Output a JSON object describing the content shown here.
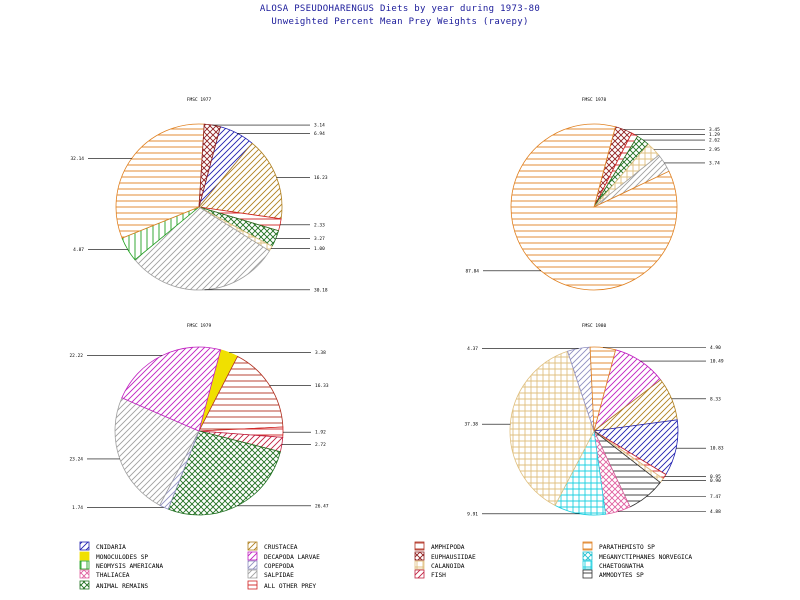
{
  "title": "ALOSA PSEUDOHARENGUS Diets by year during 1973-80",
  "subtitle": "Unweighted Percent Mean Prey Weights (ravepy)",
  "legend": [
    {
      "key": "cnidaria",
      "label": "CNIDARIA",
      "color": "#2020b0",
      "pattern": "diag"
    },
    {
      "key": "crustacea",
      "label": "CRUSTACEA",
      "color": "#b08020",
      "pattern": "diag"
    },
    {
      "key": "amphipoda",
      "label": "AMPHIPODA",
      "color": "#b03020",
      "pattern": "hlines"
    },
    {
      "key": "parathemisto",
      "label": "PARATHEMISTO SP",
      "color": "#e08020",
      "pattern": "hlines"
    },
    {
      "key": "monoculodes",
      "label": "MONOCULODES SP",
      "color": "#f0e000",
      "pattern": "solid"
    },
    {
      "key": "decapoda",
      "label": "DECAPODA LARVAE",
      "color": "#c020c0",
      "pattern": "diag"
    },
    {
      "key": "euphausiidae",
      "label": "EUPHAUSIIDAE",
      "color": "#902020",
      "pattern": "cross"
    },
    {
      "key": "meganyctiphanes",
      "label": "MEGANYCTIPHANES NORVEGICA",
      "color": "#20c0d0",
      "pattern": "cross"
    },
    {
      "key": "neomysis",
      "label": "NEOMYSIS AMERICANA",
      "color": "#20a020",
      "pattern": "vlines"
    },
    {
      "key": "copepoda",
      "label": "COPEPODA",
      "color": "#9090c0",
      "pattern": "diag"
    },
    {
      "key": "calanoida",
      "label": "CALANOIDA",
      "color": "#e0c080",
      "pattern": "grid"
    },
    {
      "key": "chaetognatha",
      "label": "CHAETOGNATHA",
      "color": "#20d0e0",
      "pattern": "grid"
    },
    {
      "key": "thaliacea",
      "label": "THALIACEA",
      "color": "#e060a0",
      "pattern": "cross"
    },
    {
      "key": "salpidae",
      "label": "SALPIDAE",
      "color": "#a0a0a0",
      "pattern": "diag"
    },
    {
      "key": "fish",
      "label": "FISH",
      "color": "#c02040",
      "pattern": "diag"
    },
    {
      "key": "ammodytes",
      "label": "AMMODYTES SP",
      "color": "#303030",
      "pattern": "hlines"
    },
    {
      "key": "animal_remains",
      "label": "ANIMAL REMAINS",
      "color": "#207020",
      "pattern": "cross"
    },
    {
      "key": "all_other",
      "label": "ALL OTHER PREY",
      "color": "#d02020",
      "pattern": "hlines"
    }
  ],
  "chart_data": [
    {
      "type": "pie",
      "title": "FMSC 1977",
      "slices": [
        {
          "key": "cnidaria",
          "value": 6.94,
          "label": "6.94"
        },
        {
          "key": "crustacea",
          "value": 16.23,
          "label": "16.23"
        },
        {
          "key": "all_other",
          "value": 2.33,
          "label": "2.33"
        },
        {
          "key": "animal_remains",
          "value": 3.27,
          "label": "3.27"
        },
        {
          "key": "calanoida",
          "value": 1.0,
          "label": "1.00"
        },
        {
          "key": "salpidae",
          "value": 30.18,
          "label": "30.18"
        },
        {
          "key": "neomysis",
          "value": 4.87,
          "label": "4.87"
        },
        {
          "key": "parathemisto",
          "value": 32.14,
          "label": "32.14"
        },
        {
          "key": "euphausiidae",
          "value": 3.14,
          "label": "3.14"
        }
      ]
    },
    {
      "type": "pie",
      "title": "FMSC 1978",
      "slices": [
        {
          "key": "euphausiidae",
          "value": 3.45,
          "label": "3.45"
        },
        {
          "key": "all_other",
          "value": 1.29,
          "label": "1.29"
        },
        {
          "key": "animal_remains",
          "value": 2.62,
          "label": "2.62"
        },
        {
          "key": "calanoida",
          "value": 2.95,
          "label": "2.95"
        },
        {
          "key": "salpidae",
          "value": 3.74,
          "label": "3.74"
        },
        {
          "key": "parathemisto",
          "value": 87.84,
          "label": "87.84"
        }
      ]
    },
    {
      "type": "pie",
      "title": "FMSC 1979",
      "slices": [
        {
          "key": "monoculodes",
          "value": 3.38,
          "label": "3.38"
        },
        {
          "key": "amphipoda",
          "value": 16.33,
          "label": "16.33"
        },
        {
          "key": "all_other",
          "value": 1.92,
          "label": "1.92"
        },
        {
          "key": "fish",
          "value": 2.72,
          "label": "2.72"
        },
        {
          "key": "animal_remains",
          "value": 26.47,
          "label": "26.47"
        },
        {
          "key": "copepoda",
          "value": 1.74,
          "label": "1.74"
        },
        {
          "key": "salpidae",
          "value": 23.24,
          "label": "23.24"
        },
        {
          "key": "decapoda",
          "value": 22.22,
          "label": "22.22"
        }
      ]
    },
    {
      "type": "pie",
      "title": "FMSC 1980",
      "slices": [
        {
          "key": "decapoda",
          "value": 10.49,
          "label": "10.49"
        },
        {
          "key": "crustacea",
          "value": 8.33,
          "label": "8.33"
        },
        {
          "key": "cnidaria",
          "value": 10.83,
          "label": "10.83"
        },
        {
          "key": "all_other",
          "value": 0.95,
          "label": "0.95"
        },
        {
          "key": "calanoida",
          "value": 0.9,
          "label": "0.90"
        },
        {
          "key": "ammodytes",
          "value": 7.47,
          "label": "7.47"
        },
        {
          "key": "thaliacea",
          "value": 4.88,
          "label": "4.88"
        },
        {
          "key": "chaetognatha",
          "value": 9.91,
          "label": "9.91"
        },
        {
          "key": "calanoida",
          "value": 37.38,
          "label": "37.38"
        },
        {
          "key": "copepoda",
          "value": 4.37,
          "label": "4.37"
        },
        {
          "key": "parathemisto",
          "value": 4.9,
          "label": "4.90"
        }
      ]
    }
  ]
}
